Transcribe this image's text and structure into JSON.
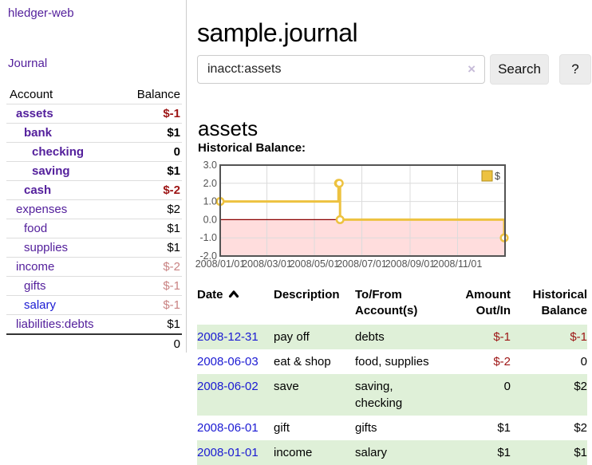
{
  "app": {
    "brand": "hledger-web"
  },
  "sidebar": {
    "journal_link": "Journal",
    "accounts_table": {
      "headers": {
        "account": "Account",
        "balance": "Balance"
      },
      "rows": [
        {
          "name": "assets",
          "balance": "$-1",
          "depth": 1,
          "bold": true,
          "link_color": "purple",
          "amount_style": "amt-neg-strong"
        },
        {
          "name": "bank",
          "balance": "$1",
          "depth": 2,
          "bold": true,
          "link_color": "purple",
          "amount_style": "amt-pos-strong"
        },
        {
          "name": "checking",
          "balance": "0",
          "depth": 3,
          "bold": true,
          "link_color": "purple",
          "amount_style": "amt-pos-strong"
        },
        {
          "name": "saving",
          "balance": "$1",
          "depth": 3,
          "bold": true,
          "link_color": "purple",
          "amount_style": "amt-pos-strong"
        },
        {
          "name": "cash",
          "balance": "$-2",
          "depth": 2,
          "bold": true,
          "link_color": "purple",
          "amount_style": "amt-neg-strong"
        },
        {
          "name": "expenses",
          "balance": "$2",
          "depth": 1,
          "bold": false,
          "link_color": "purple",
          "amount_style": "amt-plain"
        },
        {
          "name": "food",
          "balance": "$1",
          "depth": 2,
          "bold": false,
          "link_color": "purple",
          "amount_style": "amt-plain"
        },
        {
          "name": "supplies",
          "balance": "$1",
          "depth": 2,
          "bold": false,
          "link_color": "purple",
          "amount_style": "amt-plain"
        },
        {
          "name": "income",
          "balance": "$-2",
          "depth": 1,
          "bold": false,
          "link_color": "purple",
          "amount_style": "amt-neg-muted"
        },
        {
          "name": "gifts",
          "balance": "$-1",
          "depth": 2,
          "bold": false,
          "link_color": "purple",
          "amount_style": "amt-neg-muted"
        },
        {
          "name": "salary",
          "balance": "$-1",
          "depth": 2,
          "bold": false,
          "link_color": "blue",
          "amount_style": "amt-neg-muted"
        },
        {
          "name": "liabilities:debts",
          "balance": "$1",
          "depth": 1,
          "bold": false,
          "link_color": "purple",
          "amount_style": "amt-plain"
        }
      ],
      "total": "0"
    }
  },
  "main": {
    "page_title": "sample.journal",
    "search": {
      "query": "inacct:assets",
      "clear_icon": "×",
      "search_button": "Search",
      "help_button": "?"
    },
    "account_heading": "assets",
    "register_table": {
      "headers": {
        "date": "Date",
        "description": "Description",
        "accounts": "To/From Account(s)",
        "amount": "Amount Out/In",
        "balance": "Historical Balance"
      },
      "sort": {
        "column": "date",
        "direction": "ascending"
      },
      "rows": [
        {
          "date": "2008-12-31",
          "description": "pay off",
          "accounts": "debts",
          "amount": "$-1",
          "amount_negative": true,
          "balance": "$-1",
          "balance_negative": true,
          "green": true
        },
        {
          "date": "2008-06-03",
          "description": "eat & shop",
          "accounts": "food, supplies",
          "amount": "$-2",
          "amount_negative": true,
          "balance": "0",
          "balance_negative": false,
          "green": false
        },
        {
          "date": "2008-06-02",
          "description": "save",
          "accounts": "saving, checking",
          "amount": "0",
          "amount_negative": false,
          "balance": "$2",
          "balance_negative": false,
          "green": true
        },
        {
          "date": "2008-06-01",
          "description": "gift",
          "accounts": "gifts",
          "amount": "$1",
          "amount_negative": false,
          "balance": "$2",
          "balance_negative": false,
          "green": false
        },
        {
          "date": "2008-01-01",
          "description": "income",
          "accounts": "salary",
          "amount": "$1",
          "amount_negative": false,
          "balance": "$1",
          "balance_negative": false,
          "green": true
        }
      ]
    }
  },
  "chart_data": {
    "type": "line",
    "step": true,
    "title": "Historical Balance:",
    "series": [
      {
        "name": "$",
        "color": "#edc240",
        "points": [
          [
            "2008-01-01",
            1
          ],
          [
            "2008-06-01",
            2
          ],
          [
            "2008-06-02",
            2
          ],
          [
            "2008-06-03",
            0
          ],
          [
            "2008-12-31",
            -1
          ]
        ]
      }
    ],
    "xlim": [
      "2008-01-01",
      "2009-01-01"
    ],
    "ylim": [
      -2,
      3
    ],
    "y_ticks": [
      3,
      2,
      1,
      0,
      -1,
      -2
    ],
    "x_ticks": [
      "2008/01/01",
      "2008/03/01",
      "2008/05/01",
      "2008/07/01",
      "2008/09/01",
      "2008/11/01"
    ],
    "grid": true,
    "legend": {
      "label": "$",
      "position": "top-right"
    },
    "negative_region_color": "#ffdddd",
    "zero_line_color": "#8b0000",
    "grid_color": "#dcdcdc",
    "border_color": "#545454"
  },
  "colors": {
    "accent_purple": "#54209c",
    "link_blue": "#1b1ad3",
    "negative_red": "#9d1515",
    "muted_negative": "#c98383",
    "row_green": "#dff0d8",
    "chart_gold": "#edc240",
    "chart_negative_fill": "#ffdddd",
    "chart_zero_line": "#8b0000"
  }
}
